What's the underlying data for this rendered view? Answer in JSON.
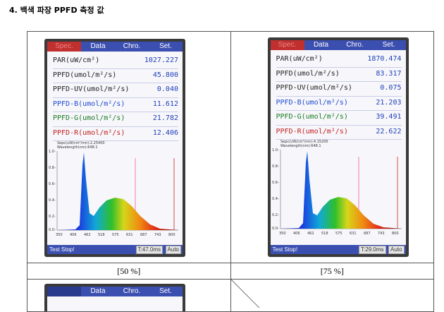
{
  "heading": "4. 백색 파장 PPFD 측정 값",
  "panels": [
    {
      "caption": "[50 %]",
      "tabs": [
        "Spec.",
        "Data",
        "Chro.",
        "Set."
      ],
      "rows": [
        {
          "label": "PAR(uW/cm²)",
          "value": "1027.227"
        },
        {
          "label": "PPFD(umol/m²/s)",
          "value": "45.800"
        },
        {
          "label": "PPFD-UV(umol/m²/s)",
          "value": "0.040"
        },
        {
          "label": "PPFD-B(umol/m²/s)",
          "value": "11.612"
        },
        {
          "label": "PPFD-G(umol/m²/s)",
          "value": "21.782"
        },
        {
          "label": "PPFD-R(umol/m²/s)",
          "value": "12.406"
        }
      ],
      "graph_info": [
        "Sepc(uW/cm²/nm):2.25400",
        "Wavelength(nm):648.1"
      ],
      "status": "Test Stop!",
      "time": "T:47.0ms",
      "auto": "Auto",
      "peak_ratio": 0.62
    },
    {
      "caption": "[75 %]",
      "tabs": [
        "Spec.",
        "Data",
        "Chro.",
        "Set."
      ],
      "rows": [
        {
          "label": "PAR(uW/cm²)",
          "value": "1870.474"
        },
        {
          "label": "PPFD(umol/m²/s)",
          "value": "83.317"
        },
        {
          "label": "PPFD-UV(umol/m²/s)",
          "value": "0.075"
        },
        {
          "label": "PPFD-B(umol/m²/s)",
          "value": "21.203"
        },
        {
          "label": "PPFD-G(umol/m²/s)",
          "value": "39.491"
        },
        {
          "label": "PPFD-R(umol/m²/s)",
          "value": "22.622"
        }
      ],
      "graph_info": [
        "Sepc(uW/cm²/nm):4.15200",
        "Wavelength(nm):648.1"
      ],
      "status": "Test Stop!",
      "time": "T:29.0ms",
      "auto": "Auto",
      "peak_ratio": 0.6
    }
  ],
  "y_ticks": [
    "1.0-",
    "0.8-",
    "0.6-",
    "0.4-",
    "0.2-",
    "0.0-"
  ],
  "x_ticks": [
    "350",
    "406",
    "462",
    "518",
    "575",
    "631",
    "687",
    "743",
    "800"
  ],
  "third_panel_tabs": [
    "Data",
    "Chro.",
    "Set."
  ]
}
